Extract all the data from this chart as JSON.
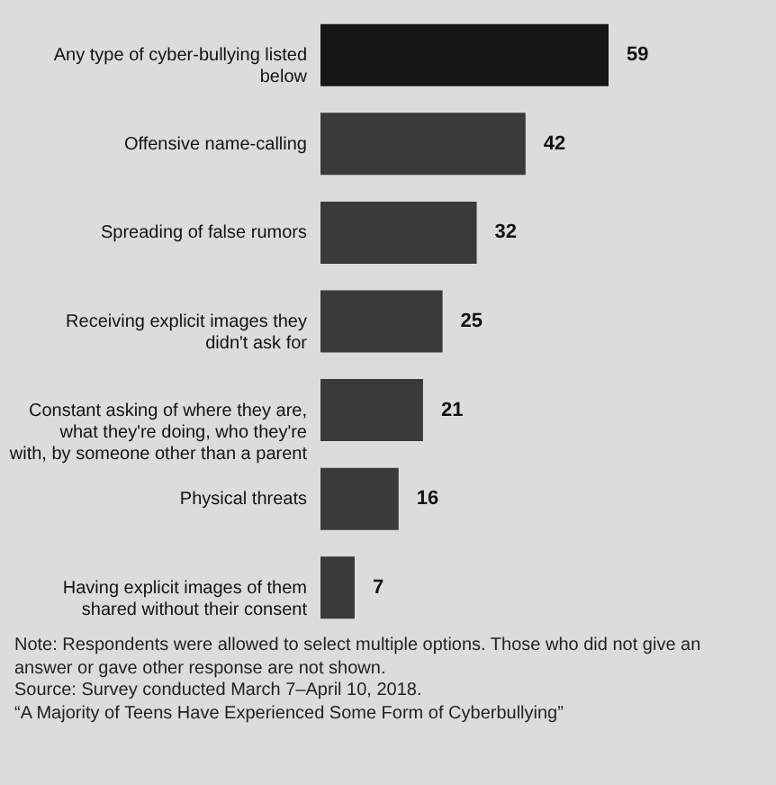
{
  "chart_data": {
    "type": "bar",
    "orientation": "horizontal",
    "data_labels": true,
    "categories": [
      "Any type of cyber-bullying listed below",
      "Offensive name-calling",
      "Spreading of false rumors",
      "Receiving explicit images they didn't ask for",
      "Constant asking of where they are, what they're doing, who they're with, by someone other than a parent",
      "Physical threats",
      "Having explicit images of them shared without their consent"
    ],
    "values": [
      59,
      42,
      32,
      25,
      21,
      16,
      7
    ],
    "colors": [
      "#161616",
      "#3a3a3a",
      "#3a3a3a",
      "#3a3a3a",
      "#3a3a3a",
      "#3a3a3a",
      "#3a3a3a"
    ],
    "annotations": [
      "Note: Respondents were allowed to select multiple options. Those who did not give an answer or gave other response are not shown.",
      "Source: Survey conducted March 7–April 10, 2018.",
      "“A Majority of Teens Have Experienced Some Form of Cyberbullying”"
    ]
  }
}
